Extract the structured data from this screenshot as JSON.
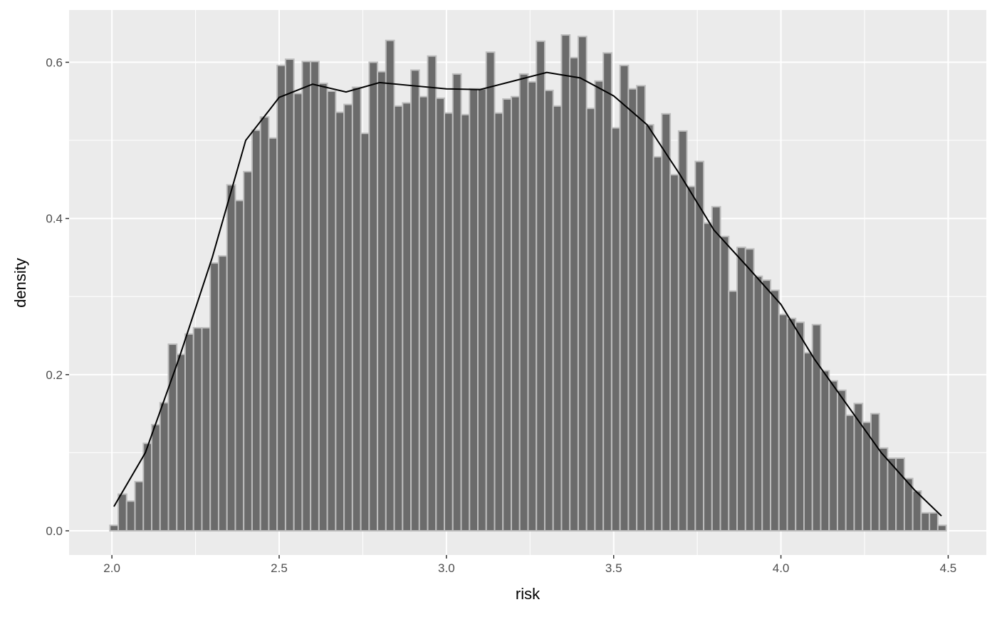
{
  "chart_data": {
    "type": "histogram",
    "xlabel": "risk",
    "ylabel": "density",
    "bins": [
      1.994,
      2.019,
      2.044,
      2.069,
      2.094,
      2.119,
      2.144,
      2.169,
      2.194,
      2.219,
      2.244,
      2.269,
      2.294,
      2.319,
      2.344,
      2.369,
      2.394,
      2.419,
      2.444,
      2.469,
      2.494,
      2.519,
      2.544,
      2.569,
      2.594,
      2.619,
      2.644,
      2.669,
      2.694,
      2.719,
      2.744,
      2.769,
      2.794,
      2.819,
      2.844,
      2.869,
      2.894,
      2.919,
      2.944,
      2.969,
      2.994,
      3.019,
      3.044,
      3.069,
      3.094,
      3.119,
      3.144,
      3.169,
      3.194,
      3.219,
      3.244,
      3.269,
      3.294,
      3.319,
      3.344,
      3.369,
      3.394,
      3.419,
      3.444,
      3.469,
      3.494,
      3.519,
      3.544,
      3.569,
      3.594,
      3.619,
      3.644,
      3.669,
      3.694,
      3.719,
      3.744,
      3.769,
      3.794,
      3.819,
      3.844,
      3.869,
      3.894,
      3.919,
      3.944,
      3.969,
      3.994,
      4.019,
      4.044,
      4.069,
      4.094,
      4.119,
      4.144,
      4.169,
      4.194,
      4.219,
      4.244,
      4.269,
      4.294,
      4.319,
      4.344,
      4.369,
      4.394,
      4.419,
      4.444,
      4.469,
      4.494
    ],
    "values": [
      0.007,
      0.047,
      0.038,
      0.063,
      0.112,
      0.136,
      0.164,
      0.239,
      0.226,
      0.252,
      0.26,
      0.26,
      0.343,
      0.352,
      0.443,
      0.423,
      0.46,
      0.513,
      0.53,
      0.503,
      0.596,
      0.604,
      0.56,
      0.601,
      0.601,
      0.573,
      0.563,
      0.536,
      0.546,
      0.568,
      0.509,
      0.6,
      0.588,
      0.628,
      0.544,
      0.548,
      0.59,
      0.556,
      0.608,
      0.554,
      0.535,
      0.585,
      0.533,
      0.566,
      0.566,
      0.613,
      0.535,
      0.553,
      0.556,
      0.585,
      0.575,
      0.627,
      0.564,
      0.544,
      0.635,
      0.606,
      0.633,
      0.541,
      0.576,
      0.612,
      0.516,
      0.596,
      0.566,
      0.57,
      0.52,
      0.479,
      0.534,
      0.456,
      0.512,
      0.441,
      0.473,
      0.394,
      0.415,
      0.377,
      0.307,
      0.363,
      0.361,
      0.326,
      0.321,
      0.308,
      0.277,
      0.272,
      0.267,
      0.228,
      0.264,
      0.205,
      0.192,
      0.18,
      0.148,
      0.163,
      0.139,
      0.15,
      0.106,
      0.093,
      0.093,
      0.067,
      0.051,
      0.023,
      0.023,
      0.007
    ],
    "bar_color": "#6b6b6b",
    "bar_edge": "#bdbdbd",
    "density": {
      "color": "#000000",
      "x": [
        2.006,
        2.1,
        2.2,
        2.3,
        2.4,
        2.5,
        2.6,
        2.7,
        2.8,
        2.9,
        3.0,
        3.1,
        3.2,
        3.3,
        3.4,
        3.5,
        3.6,
        3.7,
        3.8,
        3.9,
        4.0,
        4.1,
        4.2,
        4.3,
        4.4,
        4.48
      ],
      "values": [
        0.031,
        0.1,
        0.22,
        0.35,
        0.5,
        0.555,
        0.572,
        0.562,
        0.574,
        0.57,
        0.566,
        0.565,
        0.576,
        0.587,
        0.58,
        0.557,
        0.52,
        0.455,
        0.385,
        0.338,
        0.29,
        0.22,
        0.16,
        0.1,
        0.052,
        0.019
      ]
    },
    "xlim": [
      1.872,
      4.614
    ],
    "ylim": [
      -0.031,
      0.667
    ],
    "xticks": [
      {
        "value": 2,
        "label": "2.0"
      },
      {
        "value": 2.5,
        "label": "2.5"
      },
      {
        "value": 3,
        "label": "3.0"
      },
      {
        "value": 3.5,
        "label": "3.5"
      },
      {
        "value": 4,
        "label": "4.0"
      },
      {
        "value": 4.5,
        "label": "4.5"
      }
    ],
    "yticks": [
      {
        "value": 0,
        "label": "0.0"
      },
      {
        "value": 0.2,
        "label": "0.2"
      },
      {
        "value": 0.4,
        "label": "0.4"
      },
      {
        "value": 0.6,
        "label": "0.6"
      }
    ],
    "grid": true
  }
}
